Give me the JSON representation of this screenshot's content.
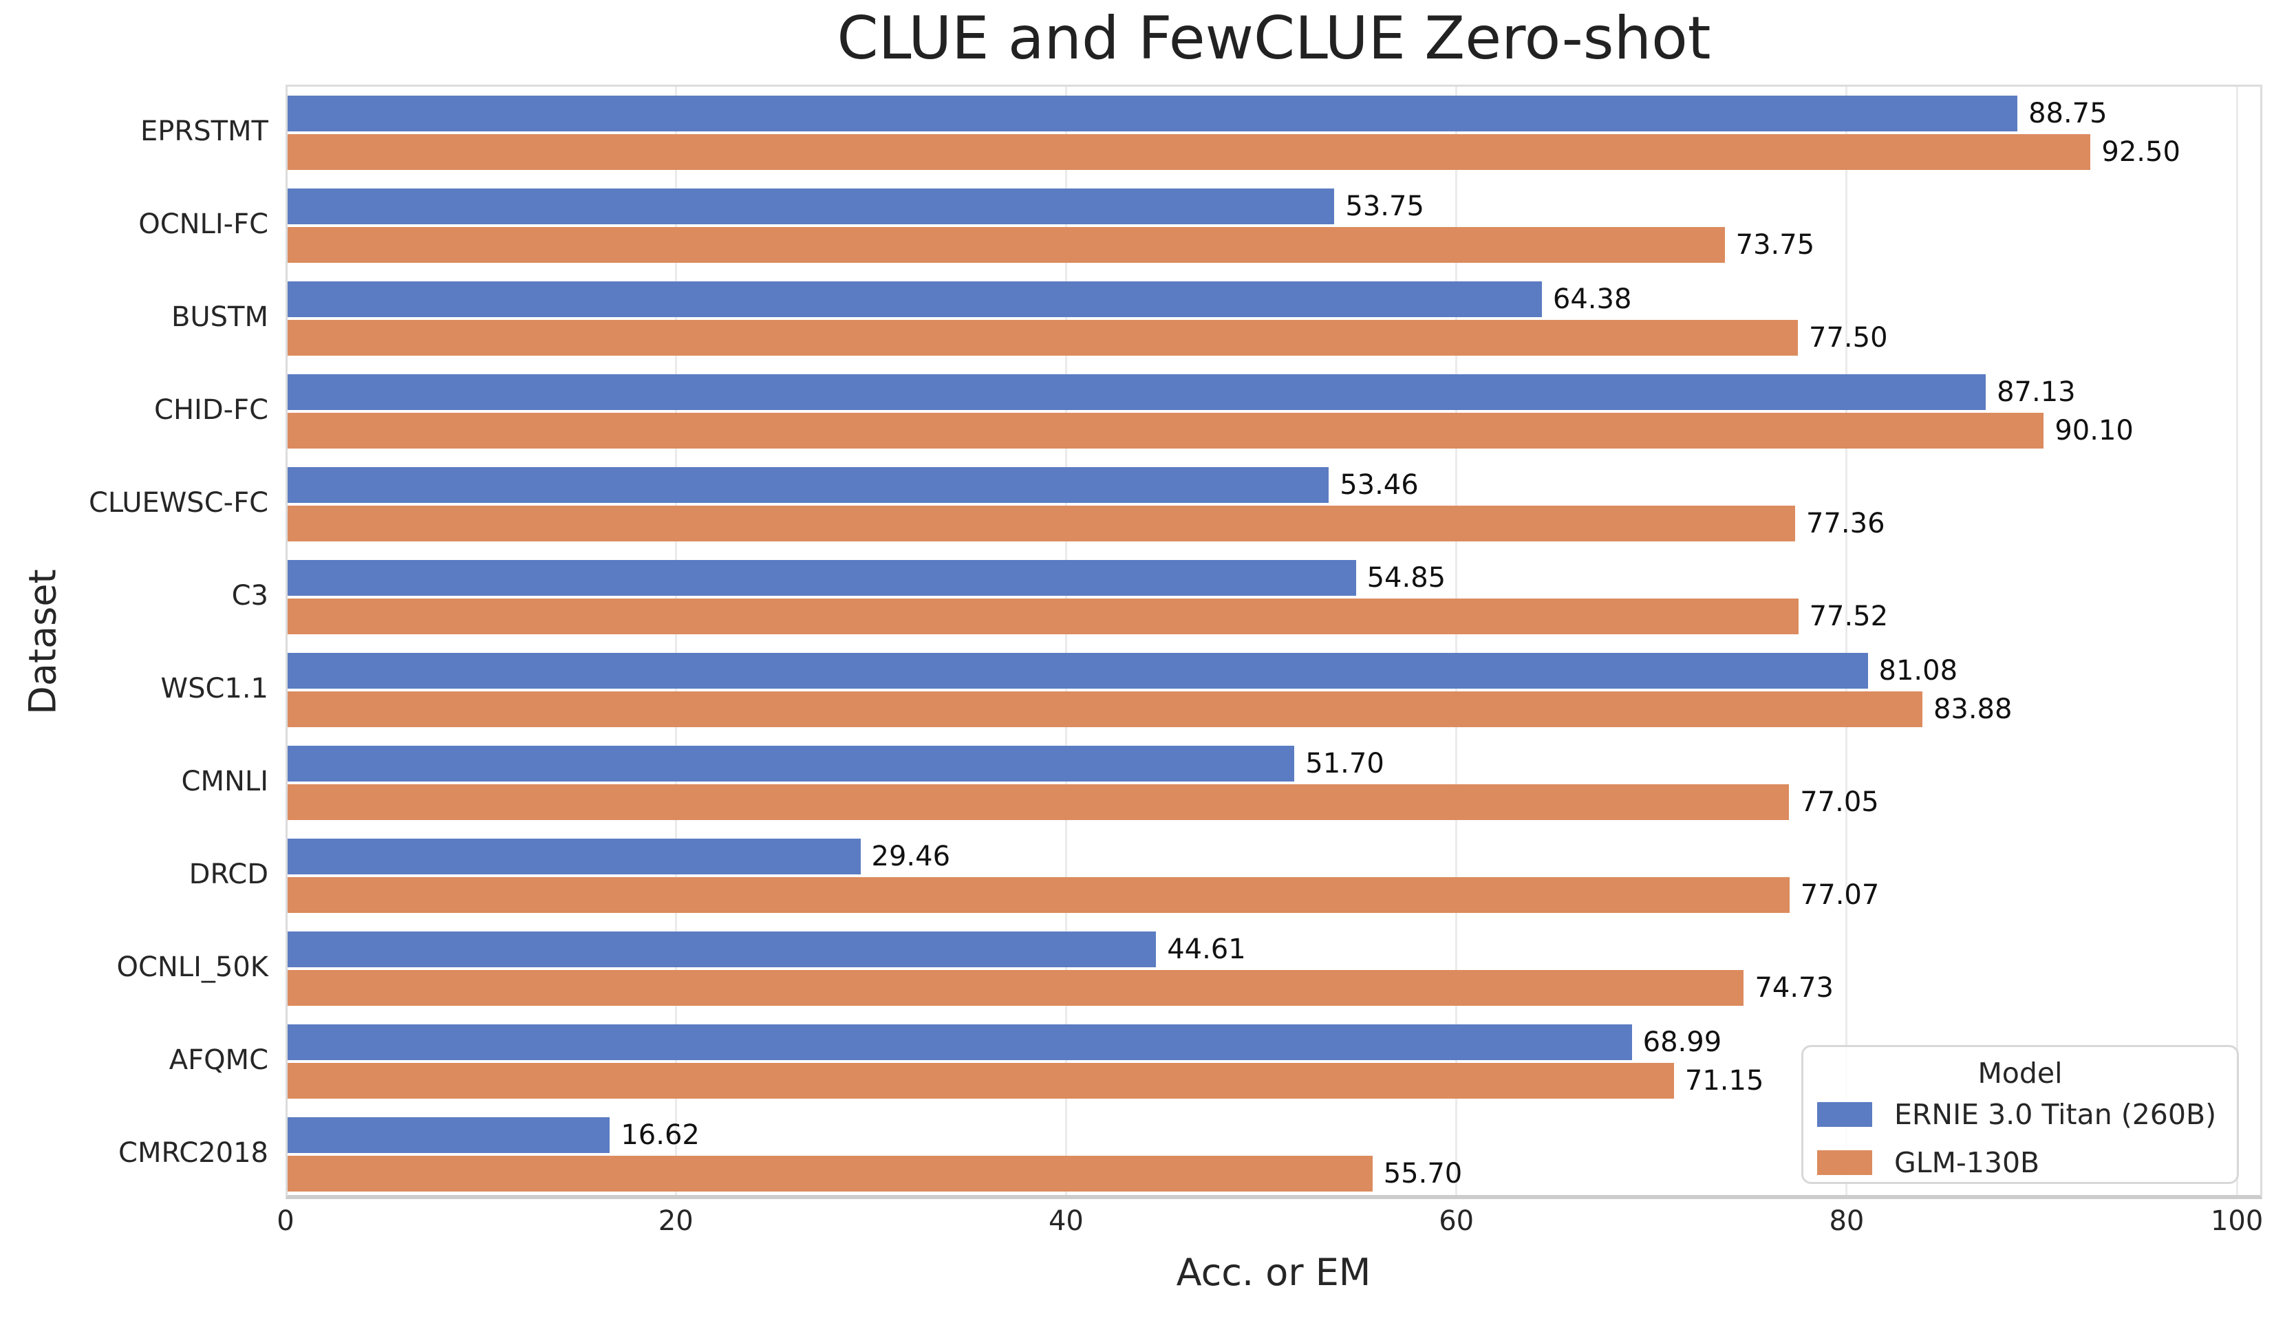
{
  "chart_data": {
    "type": "bar",
    "orientation": "horizontal",
    "title": "CLUE and FewCLUE Zero-shot",
    "xlabel": "Acc. or EM",
    "ylabel": "Dataset",
    "xlim": [
      0,
      101.3
    ],
    "xticks": [
      0,
      20,
      40,
      60,
      80,
      100
    ],
    "grid": "vertical-gridlines-on",
    "value_labels": "2-decimal, right of bar end",
    "categories": [
      "EPRSTMT",
      "OCNLI-FC",
      "BUSTM",
      "CHID-FC",
      "CLUEWSC-FC",
      "C3",
      "WSC1.1",
      "CMNLI",
      "DRCD",
      "OCNLI_50K",
      "AFQMC",
      "CMRC2018"
    ],
    "series": [
      {
        "name": "ERNIE 3.0 Titan (260B)",
        "color": "#5b7cc2",
        "values": [
          88.75,
          53.75,
          64.38,
          87.13,
          53.46,
          54.85,
          81.08,
          51.7,
          29.46,
          44.61,
          68.99,
          16.62
        ]
      },
      {
        "name": "GLM-130B",
        "color": "#dc8b5e",
        "values": [
          92.5,
          73.75,
          77.5,
          90.1,
          77.36,
          77.52,
          83.88,
          77.05,
          77.07,
          74.73,
          71.15,
          55.7
        ]
      }
    ],
    "legend": {
      "title": "Model",
      "position": "lower right"
    }
  }
}
